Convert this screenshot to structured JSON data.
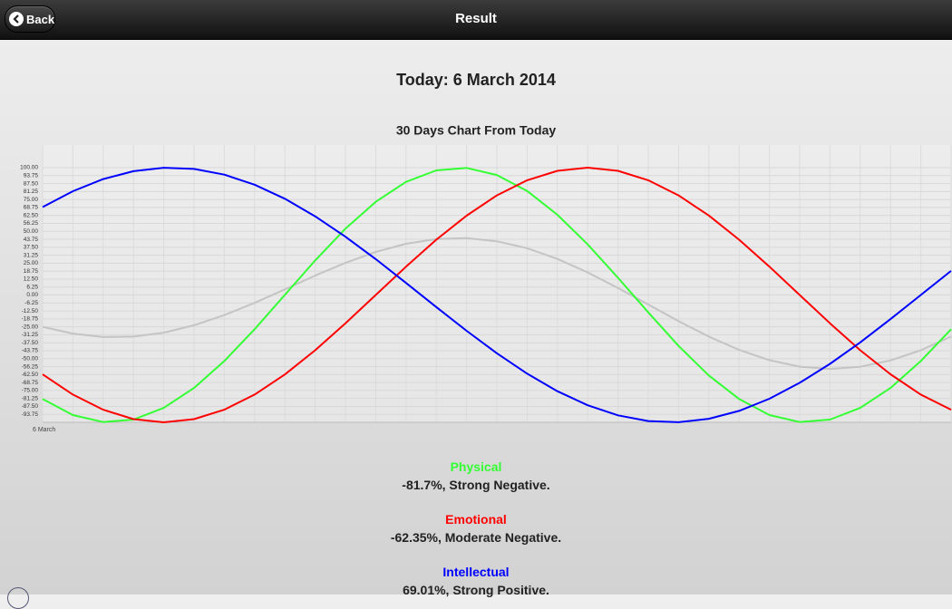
{
  "header": {
    "back": "Back",
    "title": "Result"
  },
  "heading": "Today: 6 March 2014",
  "chart_data": {
    "type": "line",
    "title": "30 Days Chart From Today",
    "categories": [
      "6 March",
      null,
      null,
      null,
      null,
      null,
      null,
      null,
      null,
      null,
      null,
      null,
      null,
      null,
      null,
      null,
      null,
      null,
      null,
      null,
      null,
      null,
      null,
      null,
      null,
      null,
      null,
      null,
      null,
      null,
      null
    ],
    "series": [
      {
        "color": "#33ff33",
        "values": [
          -81.7,
          -94.3,
          -99.8,
          -97.9,
          -88.7,
          -73.0,
          -51.9,
          -26.9,
          0.1,
          27.1,
          52.1,
          73.2,
          88.8,
          97.9,
          99.8,
          94.2,
          81.7,
          63.0,
          39.7,
          13.5,
          -13.7,
          -40.0,
          -63.2,
          -81.7,
          -94.3,
          -99.8,
          -97.9,
          -88.7,
          -73.0,
          -51.9,
          -26.9
        ]
      },
      {
        "color": "#ff0000",
        "values": [
          -62.35,
          -78.2,
          -90.1,
          -97.5,
          -100.0,
          -97.5,
          -90.1,
          -78.2,
          -62.4,
          -43.4,
          -22.3,
          0.0,
          22.2,
          43.4,
          62.3,
          78.2,
          90.1,
          97.5,
          100.0,
          97.5,
          90.1,
          78.2,
          62.4,
          43.4,
          22.3,
          0.0,
          -22.2,
          -43.4,
          -62.3,
          -78.2,
          -90.1
        ]
      },
      {
        "color": "#0000ff",
        "values": [
          69.01,
          81.5,
          91.0,
          97.2,
          99.9,
          99.0,
          94.5,
          86.6,
          75.6,
          61.8,
          45.8,
          28.2,
          9.5,
          -9.5,
          -28.1,
          -45.8,
          -61.8,
          -75.6,
          -86.6,
          -94.5,
          -99.0,
          -99.9,
          -97.2,
          -91.0,
          -81.5,
          -69.0,
          -54.1,
          -37.2,
          -18.9,
          0.0,
          18.9
        ]
      },
      {
        "color": "#c4c4c4",
        "values": [
          -25.0,
          -30.3,
          -33.0,
          -32.7,
          -29.6,
          -23.8,
          -15.8,
          -6.2,
          4.4,
          15.2,
          25.2,
          33.8,
          40.2,
          43.9,
          44.7,
          42.2,
          36.7,
          28.3,
          17.7,
          5.5,
          -7.5,
          -20.6,
          -32.7,
          -43.1,
          -51.2,
          -56.3,
          -58.1,
          -56.4,
          -51.4,
          -43.4,
          -32.7
        ]
      }
    ],
    "ylim": [
      -100,
      100
    ],
    "yticks": [
      {
        "value": 100,
        "label": "100.00"
      },
      93.75,
      {
        "value": 87.5,
        "label": "87.50"
      },
      81.25,
      {
        "value": 75,
        "label": "75.00"
      },
      68.75,
      {
        "value": 62.5,
        "label": "62.50"
      },
      56.25,
      {
        "value": 50,
        "label": "50.00"
      },
      43.75,
      {
        "value": 37.5,
        "label": "37.50"
      },
      31.25,
      {
        "value": 25,
        "label": "25.00"
      },
      18.75,
      {
        "value": 12.5,
        "label": "12.50"
      },
      6.25,
      {
        "value": 0,
        "label": "0.00"
      },
      -6.25,
      {
        "value": -12.5,
        "label": "-12.50"
      },
      -18.75,
      {
        "value": -25,
        "label": "-25.00"
      },
      -31.25,
      {
        "value": -37.5,
        "label": "-37.50"
      },
      -43.75,
      {
        "value": -50,
        "label": "-50.00"
      },
      -56.25,
      {
        "value": -62.5,
        "label": "-62.50"
      },
      -68.75,
      {
        "value": -75,
        "label": "-75.00"
      },
      -81.25,
      {
        "value": -87.5,
        "label": "-87.50"
      },
      -93.75
    ],
    "grid": true
  },
  "results": [
    {
      "name": "Physical",
      "color": "#33ff33",
      "text": "-81.7%, Strong Negative."
    },
    {
      "name": "Emotional",
      "color": "#ff0000",
      "text": "-62.35%, Moderate Negative."
    },
    {
      "name": "Intellectual",
      "color": "#0000ff",
      "text": "69.01%, Strong Positive."
    }
  ]
}
